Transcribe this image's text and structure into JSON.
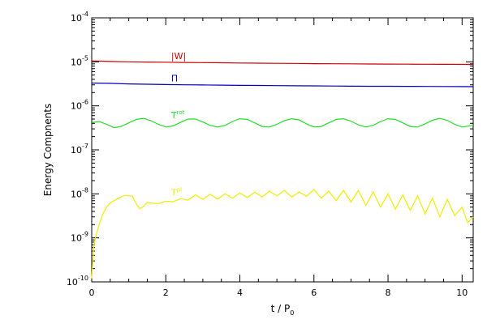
{
  "chart_data": {
    "type": "line",
    "title": "",
    "xlabel_main": "t / P",
    "xlabel_sub": "0",
    "ylabel": "Energy Compnents",
    "xlim": [
      0,
      10.3
    ],
    "ylim": [
      1e-10,
      0.0001
    ],
    "yscale": "log",
    "grid": false,
    "x_ticks": [
      0,
      2,
      4,
      6,
      8,
      10
    ],
    "x_tick_labels": [
      "0",
      "2",
      "4",
      "6",
      "8",
      "10"
    ],
    "y_ticks": [
      1e-10,
      1e-09,
      1e-08,
      1e-07,
      1e-06,
      1e-05,
      0.0001
    ],
    "y_tick_labels": [
      {
        "base": "10",
        "exp": "-10"
      },
      {
        "base": "10",
        "exp": "-9"
      },
      {
        "base": "10",
        "exp": "-8"
      },
      {
        "base": "10",
        "exp": "-7"
      },
      {
        "base": "10",
        "exp": "-6"
      },
      {
        "base": "10",
        "exp": "-5"
      },
      {
        "base": "10",
        "exp": "-4"
      }
    ],
    "series": [
      {
        "key": "W",
        "color": "#cc0000",
        "x": [
          0,
          0.5,
          1,
          1.5,
          2,
          2.5,
          3,
          3.5,
          4,
          4.5,
          5,
          5.5,
          6,
          6.5,
          7,
          7.5,
          8,
          8.5,
          9,
          9.5,
          10,
          10.3
        ],
        "y": [
          1.05e-05,
          1.02e-05,
          1e-05,
          9.9e-06,
          9.8e-06,
          9.7e-06,
          9.6e-06,
          9.5e-06,
          9.4e-06,
          9.3e-06,
          9.25e-06,
          9.2e-06,
          9.1e-06,
          9.05e-06,
          9e-06,
          8.95e-06,
          8.9e-06,
          8.85e-06,
          8.8e-06,
          8.78e-06,
          8.75e-06,
          8.7e-06
        ]
      },
      {
        "key": "Pi",
        "color": "#0000bb",
        "x": [
          0,
          0.5,
          1,
          1.5,
          2,
          2.5,
          3,
          3.5,
          4,
          4.5,
          5,
          5.5,
          6,
          6.5,
          7,
          7.5,
          8,
          8.5,
          9,
          9.5,
          10,
          10.3
        ],
        "y": [
          3.3e-06,
          3.25e-06,
          3.15e-06,
          3.1e-06,
          3.05e-06,
          3e-06,
          2.98e-06,
          2.95e-06,
          2.92e-06,
          2.9e-06,
          2.88e-06,
          2.86e-06,
          2.84e-06,
          2.82e-06,
          2.8e-06,
          2.79e-06,
          2.78e-06,
          2.77e-06,
          2.76e-06,
          2.75e-06,
          2.74e-06,
          2.73e-06
        ]
      },
      {
        "key": "Trot",
        "color": "#22dd22",
        "x": [
          0,
          0.2,
          0.4,
          0.6,
          0.8,
          1.0,
          1.2,
          1.4,
          1.6,
          1.8,
          2.0,
          2.2,
          2.4,
          2.6,
          2.8,
          3.0,
          3.2,
          3.4,
          3.6,
          3.8,
          4.0,
          4.2,
          4.4,
          4.6,
          4.8,
          5.0,
          5.2,
          5.4,
          5.6,
          5.8,
          6.0,
          6.2,
          6.4,
          6.6,
          6.8,
          7.0,
          7.2,
          7.4,
          7.6,
          7.8,
          8.0,
          8.2,
          8.4,
          8.6,
          8.8,
          9.0,
          9.2,
          9.4,
          9.6,
          9.8,
          10.0,
          10.3
        ],
        "y": [
          4.2e-07,
          4.4e-07,
          3.8e-07,
          3.2e-07,
          3.4e-07,
          4.1e-07,
          4.9e-07,
          5.2e-07,
          4.6e-07,
          3.8e-07,
          3.3e-07,
          3.5e-07,
          4.2e-07,
          5e-07,
          5e-07,
          4.3e-07,
          3.6e-07,
          3.3e-07,
          3.6e-07,
          4.4e-07,
          5.1e-07,
          4.9e-07,
          4.1e-07,
          3.4e-07,
          3.3e-07,
          3.8e-07,
          4.6e-07,
          5.1e-07,
          4.8e-07,
          3.9e-07,
          3.3e-07,
          3.4e-07,
          4.1e-07,
          4.9e-07,
          5.1e-07,
          4.5e-07,
          3.7e-07,
          3.3e-07,
          3.6e-07,
          4.4e-07,
          5.1e-07,
          4.9e-07,
          4.1e-07,
          3.4e-07,
          3.3e-07,
          3.9e-07,
          4.7e-07,
          5.2e-07,
          4.7e-07,
          3.8e-07,
          3.3e-07,
          3.6e-07
        ]
      },
      {
        "key": "Tpl",
        "color": "#eeee00",
        "x": [
          0,
          0.05,
          0.1,
          0.2,
          0.3,
          0.4,
          0.5,
          0.6,
          0.7,
          0.8,
          0.9,
          1.0,
          1.1,
          1.2,
          1.3,
          1.4,
          1.5,
          1.6,
          1.8,
          2.0,
          2.2,
          2.4,
          2.6,
          2.8,
          3.0,
          3.2,
          3.4,
          3.6,
          3.8,
          4.0,
          4.2,
          4.4,
          4.6,
          4.8,
          5.0,
          5.2,
          5.4,
          5.6,
          5.8,
          6.0,
          6.2,
          6.4,
          6.6,
          6.8,
          7.0,
          7.2,
          7.4,
          7.6,
          7.8,
          8.0,
          8.2,
          8.4,
          8.6,
          8.8,
          9.0,
          9.2,
          9.4,
          9.6,
          9.8,
          10.0,
          10.15,
          10.3
        ],
        "y": [
          1.2e-10,
          6e-10,
          1e-09,
          2e-09,
          3.5e-09,
          5e-09,
          6.2e-09,
          7e-09,
          7.8e-09,
          8.6e-09,
          9.2e-09,
          9e-09,
          8.8e-09,
          6e-09,
          4.6e-09,
          5.2e-09,
          6.4e-09,
          6.2e-09,
          6e-09,
          6.8e-09,
          6.6e-09,
          7.8e-09,
          7.2e-09,
          9.5e-09,
          7.5e-09,
          9.8e-09,
          7.6e-09,
          1e-08,
          8e-09,
          1.05e-08,
          8.2e-09,
          1.1e-08,
          8.5e-09,
          1.15e-08,
          9e-09,
          1.2e-08,
          8.5e-09,
          1.1e-08,
          8.8e-09,
          1.25e-08,
          8e-09,
          1.15e-08,
          7e-09,
          1.2e-08,
          6.5e-09,
          1.2e-08,
          5.5e-09,
          1.1e-08,
          5e-09,
          1e-08,
          4.5e-09,
          9.5e-09,
          4.2e-09,
          9e-09,
          3.5e-09,
          8e-09,
          3e-09,
          7.5e-09,
          3.2e-09,
          5e-09,
          2.2e-09,
          3e-09
        ]
      }
    ],
    "annotations": [
      {
        "text": "|W|",
        "sub": "",
        "x": 1.05,
        "y": 1.15e-05,
        "color": "#cc0000"
      },
      {
        "text": "Π",
        "sub": "",
        "x": 1.05,
        "y": 3.6e-06,
        "color": "#0000bb"
      },
      {
        "text": "T",
        "sub": "rot",
        "x": 1.05,
        "y": 5.2e-07,
        "color": "#22dd22"
      },
      {
        "text": "T",
        "sub": "pl",
        "x": 1.05,
        "y": 9.2e-09,
        "color": "#eeee00"
      }
    ]
  }
}
